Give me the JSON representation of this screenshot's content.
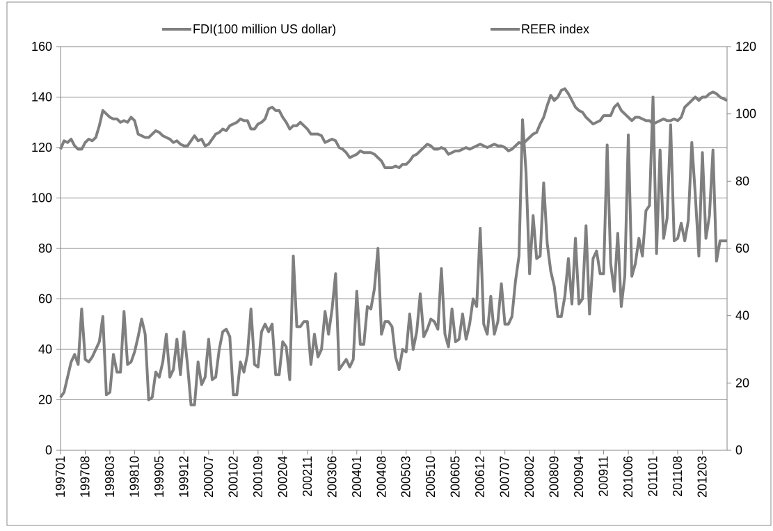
{
  "chart_data": {
    "type": "line",
    "categories": [
      "199701",
      null,
      null,
      null,
      null,
      null,
      null,
      "199708",
      null,
      null,
      null,
      null,
      null,
      null,
      "199803",
      null,
      null,
      null,
      null,
      null,
      null,
      "199810",
      null,
      null,
      null,
      null,
      null,
      null,
      "199905",
      null,
      null,
      null,
      null,
      null,
      null,
      "199912",
      null,
      null,
      null,
      null,
      null,
      null,
      "200007",
      null,
      null,
      null,
      null,
      null,
      null,
      "200102",
      null,
      null,
      null,
      null,
      null,
      null,
      "200109",
      null,
      null,
      null,
      null,
      null,
      null,
      "200204",
      null,
      null,
      null,
      null,
      null,
      null,
      "200211",
      null,
      null,
      null,
      null,
      null,
      null,
      "200306",
      null,
      null,
      null,
      null,
      null,
      null,
      "200401",
      null,
      null,
      null,
      null,
      null,
      null,
      "200408",
      null,
      null,
      null,
      null,
      null,
      null,
      "200503",
      null,
      null,
      null,
      null,
      null,
      null,
      "200510",
      null,
      null,
      null,
      null,
      null,
      null,
      "200605",
      null,
      null,
      null,
      null,
      null,
      null,
      "200612",
      null,
      null,
      null,
      null,
      null,
      null,
      "200707",
      null,
      null,
      null,
      null,
      null,
      null,
      "200802",
      null,
      null,
      null,
      null,
      null,
      null,
      "200809",
      null,
      null,
      null,
      null,
      null,
      null,
      "200904",
      null,
      null,
      null,
      null,
      null,
      null,
      "200911",
      null,
      null,
      null,
      null,
      null,
      null,
      "201006",
      null,
      null,
      null,
      null,
      null,
      null,
      "201101",
      null,
      null,
      null,
      null,
      null,
      null,
      "201108",
      null,
      null,
      null,
      null,
      null,
      null,
      "201203",
      null,
      null,
      null,
      null,
      null,
      null,
      null
    ],
    "series": [
      {
        "name": "FDI(100 million US dollar)",
        "color": "#7f7f7f",
        "values": [
          21,
          23,
          29,
          35,
          38,
          34,
          56,
          36,
          35,
          37,
          40,
          43,
          53,
          22,
          23,
          38,
          31,
          31,
          55,
          34,
          35,
          39,
          45,
          52,
          46,
          20,
          21,
          31,
          29,
          35,
          46,
          29,
          32,
          44,
          30,
          47,
          34,
          18,
          18,
          35,
          26,
          29,
          44,
          28,
          29,
          40,
          47,
          48,
          45,
          22,
          22,
          35,
          31,
          38,
          56,
          34,
          33,
          47,
          50,
          47,
          50,
          30,
          30,
          43,
          41,
          28,
          77,
          49,
          49,
          51,
          51,
          34,
          46,
          37,
          40,
          55,
          46,
          56,
          70,
          32,
          34,
          36,
          33,
          36,
          63,
          42,
          42,
          57,
          56,
          64,
          80,
          46,
          51,
          51,
          49,
          37,
          32,
          40,
          39,
          54,
          40,
          47,
          62,
          45,
          48,
          52,
          51,
          48,
          72,
          46,
          41,
          56,
          43,
          44,
          54,
          44,
          50,
          60,
          57,
          88,
          50,
          46,
          61,
          46,
          51,
          66,
          50,
          50,
          53,
          67,
          77,
          131,
          110,
          70,
          93,
          76,
          77,
          106,
          82,
          71,
          65,
          53,
          53,
          61,
          76,
          58,
          84,
          58,
          60,
          89,
          54,
          76,
          79,
          70,
          70,
          121,
          74,
          63,
          86,
          57,
          69,
          125,
          69,
          74,
          84,
          77,
          95,
          97,
          140,
          78,
          119,
          84,
          92,
          129,
          83,
          84,
          90,
          83,
          91,
          122,
          101,
          77,
          118,
          84,
          93,
          119,
          75,
          83,
          83,
          83
        ]
      },
      {
        "name": "REER index",
        "color": "#7f7f7f",
        "axis": "y2",
        "values": [
          89.5,
          92,
          91.5,
          92.5,
          90.5,
          89.5,
          89.5,
          91.5,
          92.5,
          92,
          93,
          96.5,
          101,
          100,
          99,
          98.5,
          98.5,
          97.5,
          98,
          97.5,
          99,
          98,
          94,
          93.5,
          93,
          93,
          94,
          95,
          94.5,
          93.5,
          93,
          92.5,
          91.5,
          92,
          91,
          90.5,
          90.5,
          92,
          93.5,
          92,
          92.5,
          90.5,
          91,
          92.5,
          94,
          94.5,
          95.5,
          95,
          96.5,
          97,
          97.5,
          98.5,
          98,
          98,
          95.5,
          95.5,
          97,
          97.5,
          98.5,
          101.5,
          102,
          101,
          101,
          99,
          97.5,
          95.5,
          96.5,
          96.5,
          97.5,
          96.5,
          95.5,
          94,
          94,
          94,
          93.5,
          91.5,
          92,
          92.5,
          92,
          90,
          89.5,
          88.5,
          87,
          87.5,
          88,
          89,
          88.5,
          88.5,
          88.5,
          88,
          87,
          86,
          84,
          84,
          84,
          84.5,
          84,
          85,
          85,
          86,
          87.5,
          88,
          89,
          90,
          91,
          90.5,
          89.5,
          89.5,
          90,
          89.5,
          88,
          88.5,
          89,
          89,
          89.5,
          90,
          89.5,
          90,
          90.5,
          91,
          90.5,
          90,
          90.5,
          91,
          90.5,
          90.5,
          90,
          89,
          89.5,
          90.5,
          91.5,
          91,
          92,
          93,
          94,
          94.5,
          97,
          99,
          102.5,
          105.5,
          104,
          105,
          107,
          107.5,
          106,
          104,
          102,
          101,
          100.5,
          99,
          98,
          97,
          97.5,
          98,
          99.5,
          99.5,
          99.5,
          102,
          103,
          101,
          100,
          99,
          98,
          99,
          99,
          98.5,
          98,
          98,
          97,
          97.5,
          98,
          98.5,
          98,
          98,
          98.5,
          98,
          99,
          102,
          103,
          104,
          105,
          104,
          105,
          105,
          106,
          106.5,
          106,
          105,
          104.5,
          104
        ]
      }
    ],
    "ylim": [
      0,
      160
    ],
    "yticks": [
      0,
      20,
      40,
      60,
      80,
      100,
      120,
      140,
      160
    ],
    "y2lim": [
      0,
      120
    ],
    "y2ticks": [
      0,
      20,
      40,
      60,
      80,
      100,
      120
    ],
    "grid": true,
    "legend": "top"
  }
}
